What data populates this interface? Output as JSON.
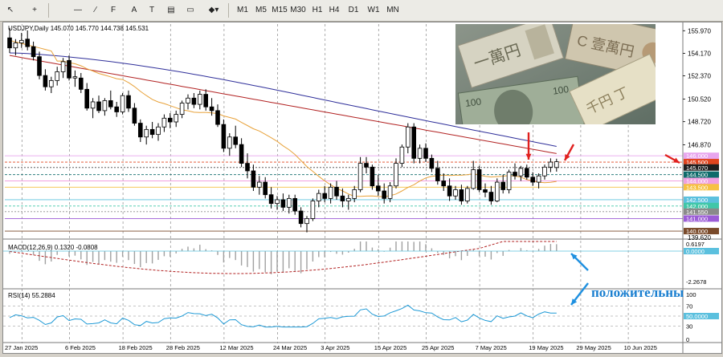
{
  "toolbar": {
    "timeframes": [
      "M1",
      "M5",
      "M15",
      "M30",
      "H1",
      "H4",
      "D1",
      "W1",
      "MN"
    ]
  },
  "chart": {
    "title": "USDJPY,Daily  145.070 145.770 144.738 145.531",
    "price_ticks": [
      "155.970",
      "154.170",
      "152.370",
      "150.520",
      "148.720",
      "146.870",
      "145.070",
      "144.500",
      "143.500",
      "141.550",
      "141.000",
      "140.000",
      "139.620"
    ],
    "date_ticks": [
      "27 Jan 2025",
      "6 Feb 2025",
      "18 Feb 2025",
      "28 Feb 2025",
      "12 Mar 2025",
      "24 Mar 2025",
      "3 Apr 2025",
      "15 Apr 2025",
      "25 Apr 2025",
      "7 May 2025",
      "19 May 2025",
      "29 May 2025",
      "10 Jun 2025"
    ],
    "level_labels": [
      {
        "text": "146.000",
        "color": "#e8a6ee"
      },
      {
        "text": "145.500",
        "color": "#e0451f"
      },
      {
        "text": "145.070",
        "color": "#1f1f1f"
      },
      {
        "text": "144.500",
        "color": "#0e6b6b"
      },
      {
        "text": "144.000",
        "color": "#f0a0e0"
      },
      {
        "text": "143.500",
        "color": "#f6c142"
      },
      {
        "text": "142.500",
        "color": "#5bc0de"
      },
      {
        "text": "142.000",
        "color": "#40c7a8"
      },
      {
        "text": "141.550",
        "color": "#8a8a8a"
      },
      {
        "text": "141.000",
        "color": "#9b5cd6"
      },
      {
        "text": "140.000",
        "color": "#7a4a2a"
      }
    ]
  },
  "macd": {
    "label": "MACD(12,26,9) 0.1320 -0.0808",
    "ticks": [
      "0.6197",
      "0.0000",
      "-2.2678"
    ]
  },
  "rsi": {
    "label": "RSI(14) 55.2884",
    "ticks": [
      "100",
      "70",
      "50.0000",
      "30",
      "0"
    ]
  },
  "annotation": {
    "caption": "положительны"
  },
  "colors": {
    "bull": "#ffffff",
    "bear": "#000000",
    "ma_fast": "#e8a23a",
    "ma_mid": "#2f2f9a",
    "ma_slow": "#b22222",
    "arrow_red": "#e0201e",
    "arrow_blue": "#1e90e0",
    "rsi_line": "#1f9ad6",
    "macd_signal": "#b22222"
  },
  "chart_data": {
    "type": "candlestick",
    "series": [
      {
        "name": "USDJPY",
        "ohlc": [
          [
            155.4,
            156.2,
            154.2,
            154.6
          ],
          [
            154.6,
            155.3,
            154.0,
            155.0
          ],
          [
            155.0,
            155.8,
            154.6,
            155.2
          ],
          [
            155.3,
            156.0,
            154.4,
            154.7
          ],
          [
            154.7,
            155.1,
            153.6,
            153.9
          ],
          [
            153.9,
            154.3,
            152.1,
            152.4
          ],
          [
            152.4,
            152.9,
            151.2,
            151.5
          ],
          [
            151.5,
            152.3,
            151.0,
            152.0
          ],
          [
            152.0,
            153.1,
            151.6,
            152.7
          ],
          [
            152.7,
            153.8,
            152.2,
            153.5
          ],
          [
            153.6,
            154.0,
            152.0,
            152.2
          ],
          [
            152.2,
            152.8,
            151.5,
            152.3
          ],
          [
            152.2,
            152.6,
            151.0,
            151.3
          ],
          [
            151.3,
            151.8,
            149.6,
            149.8
          ],
          [
            149.8,
            150.6,
            149.0,
            150.3
          ],
          [
            150.3,
            150.8,
            149.4,
            149.6
          ],
          [
            149.6,
            150.6,
            149.2,
            150.4
          ],
          [
            150.4,
            151.2,
            149.7,
            149.9
          ],
          [
            149.9,
            150.3,
            149.1,
            149.5
          ],
          [
            149.5,
            151.0,
            149.3,
            150.8
          ],
          [
            150.8,
            151.2,
            149.5,
            149.8
          ],
          [
            149.8,
            150.2,
            148.4,
            148.6
          ],
          [
            148.6,
            148.9,
            147.1,
            147.5
          ],
          [
            147.5,
            148.4,
            146.9,
            148.1
          ],
          [
            148.1,
            148.7,
            147.4,
            147.7
          ],
          [
            147.7,
            148.6,
            147.2,
            148.3
          ],
          [
            148.3,
            149.3,
            147.9,
            149.0
          ],
          [
            149.0,
            149.4,
            148.2,
            148.7
          ],
          [
            148.7,
            149.6,
            148.3,
            149.3
          ],
          [
            149.3,
            150.4,
            149.0,
            150.2
          ],
          [
            150.2,
            150.9,
            149.7,
            150.6
          ],
          [
            150.6,
            151.0,
            149.8,
            150.1
          ],
          [
            150.1,
            151.2,
            149.7,
            150.9
          ],
          [
            150.9,
            151.3,
            149.6,
            149.9
          ],
          [
            149.9,
            150.6,
            149.2,
            149.6
          ],
          [
            149.6,
            150.1,
            148.3,
            148.5
          ],
          [
            148.5,
            148.9,
            146.3,
            146.6
          ],
          [
            146.6,
            147.8,
            146.0,
            147.5
          ],
          [
            147.5,
            148.4,
            146.6,
            146.9
          ],
          [
            146.9,
            147.4,
            145.1,
            145.4
          ],
          [
            145.4,
            146.2,
            144.2,
            144.8
          ],
          [
            144.8,
            145.3,
            143.2,
            143.5
          ],
          [
            143.5,
            144.4,
            142.9,
            143.9
          ],
          [
            143.9,
            144.3,
            142.6,
            142.9
          ],
          [
            142.9,
            143.5,
            141.8,
            142.2
          ],
          [
            142.2,
            142.8,
            141.7,
            142.5
          ],
          [
            142.5,
            143.0,
            141.6,
            141.9
          ],
          [
            141.9,
            142.9,
            141.4,
            142.6
          ],
          [
            142.6,
            142.9,
            141.3,
            141.6
          ],
          [
            141.6,
            141.9,
            140.3,
            140.6
          ],
          [
            140.6,
            141.2,
            139.9,
            141.0
          ],
          [
            141.0,
            142.6,
            140.8,
            142.4
          ],
          [
            142.4,
            143.3,
            141.9,
            143.0
          ],
          [
            143.0,
            143.6,
            142.3,
            142.6
          ],
          [
            142.6,
            143.8,
            142.2,
            143.5
          ],
          [
            143.5,
            144.0,
            142.5,
            142.8
          ],
          [
            142.8,
            143.4,
            141.9,
            142.4
          ],
          [
            142.4,
            142.9,
            141.7,
            142.6
          ],
          [
            142.6,
            143.6,
            142.3,
            143.3
          ],
          [
            143.3,
            145.9,
            143.1,
            145.4
          ],
          [
            145.4,
            145.9,
            144.6,
            145.1
          ],
          [
            145.1,
            145.3,
            143.3,
            143.6
          ],
          [
            143.6,
            144.5,
            142.8,
            143.2
          ],
          [
            143.2,
            143.8,
            142.2,
            142.6
          ],
          [
            142.6,
            143.9,
            142.3,
            143.6
          ],
          [
            143.6,
            145.8,
            143.4,
            145.4
          ],
          [
            145.4,
            146.9,
            145.1,
            146.7
          ],
          [
            146.7,
            148.6,
            146.2,
            148.3
          ],
          [
            148.3,
            148.6,
            145.4,
            145.8
          ],
          [
            145.8,
            146.9,
            145.4,
            146.6
          ],
          [
            146.6,
            147.0,
            145.5,
            145.8
          ],
          [
            145.8,
            146.1,
            144.7,
            145.0
          ],
          [
            145.0,
            145.6,
            143.7,
            144.0
          ],
          [
            144.0,
            144.6,
            143.2,
            143.6
          ],
          [
            143.6,
            144.2,
            142.4,
            142.8
          ],
          [
            142.8,
            143.6,
            142.5,
            143.3
          ],
          [
            143.3,
            143.7,
            142.1,
            142.4
          ],
          [
            142.4,
            143.6,
            142.2,
            143.4
          ],
          [
            143.4,
            145.6,
            143.3,
            144.9
          ],
          [
            144.9,
            145.2,
            143.1,
            143.3
          ],
          [
            143.3,
            143.8,
            142.7,
            143.1
          ],
          [
            143.1,
            143.6,
            142.1,
            142.4
          ],
          [
            142.4,
            144.2,
            142.3,
            143.9
          ],
          [
            143.9,
            144.5,
            143.0,
            143.3
          ],
          [
            143.3,
            144.9,
            143.0,
            144.7
          ],
          [
            144.7,
            145.4,
            144.1,
            144.4
          ],
          [
            144.4,
            145.2,
            144.0,
            145.0
          ],
          [
            145.0,
            145.3,
            144.1,
            144.3
          ],
          [
            144.3,
            144.7,
            143.6,
            143.9
          ],
          [
            143.9,
            144.6,
            143.4,
            144.4
          ],
          [
            144.4,
            145.3,
            144.1,
            145.1
          ],
          [
            145.1,
            145.8,
            144.7,
            145.5
          ],
          [
            145.07,
            145.77,
            144.738,
            145.531
          ]
        ]
      }
    ],
    "x_labels": [
      "27 Jan 2025",
      "6 Feb 2025",
      "18 Feb 2025",
      "28 Feb 2025",
      "12 Mar 2025",
      "24 Mar 2025",
      "3 Apr 2025",
      "15 Apr 2025",
      "25 Apr 2025",
      "7 May 2025",
      "19 May 2025",
      "29 May 2025",
      "10 Jun 2025"
    ],
    "y_range": [
      139.62,
      156.5
    ],
    "title": "USDJPY,Daily  145.070 145.770 144.738 145.531"
  }
}
